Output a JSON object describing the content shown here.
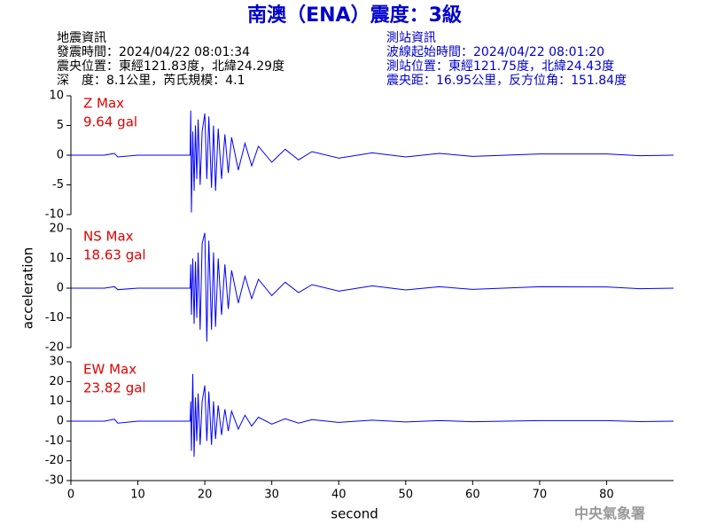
{
  "header": {
    "title": "南澳（ENA）震度：3級",
    "left": [
      "地震資訊",
      "發震時間：2024/04/22 08:01:34",
      "震央位置：東經121.83度，北緯24.29度",
      "深　度：8.1公里，芮氏規模：4.1"
    ],
    "right": [
      "測站資訊",
      "波線起始時間：2024/04/22 08:01:20",
      "測站位置：東經121.75度，北緯24.43度",
      "震央距：16.95公里，反方位角：151.84度"
    ],
    "agency": "中央氣象署"
  },
  "chart_data": [
    {
      "type": "line",
      "label": "Z Max",
      "max": "9.64 gal",
      "color": "#0000ff",
      "xlim": [
        0,
        90
      ],
      "ylim": [
        -10,
        10
      ],
      "yticks": [
        -10,
        -5,
        0,
        5,
        10
      ],
      "x": [
        0,
        5,
        6.5,
        7,
        10,
        15,
        17.8,
        17.9,
        18.0,
        18.2,
        18.4,
        18.6,
        18.8,
        19,
        19.3,
        19.6,
        20,
        20.3,
        20.6,
        21,
        21.3,
        21.6,
        22,
        22.5,
        23,
        23.5,
        24,
        25,
        26,
        27,
        28,
        30,
        32,
        34,
        36,
        40,
        45,
        50,
        55,
        60,
        70,
        80,
        85,
        90
      ],
      "values": [
        0,
        0,
        0.3,
        -0.3,
        0,
        0,
        0,
        7.5,
        -9.64,
        4,
        -6,
        5,
        -4,
        6,
        -5,
        4,
        7,
        -4,
        6.5,
        -5.5,
        5,
        -6,
        4.5,
        -4,
        3.5,
        -3,
        3,
        -2.5,
        2,
        -1.8,
        1.5,
        -1.2,
        1,
        -0.8,
        0.6,
        -0.5,
        0.4,
        -0.3,
        0.3,
        -0.2,
        0.2,
        0.2,
        -0.1,
        0
      ]
    },
    {
      "type": "line",
      "label": "NS Max",
      "max": "18.63 gal",
      "ylabel": "acceleration",
      "color": "#0000ff",
      "xlim": [
        0,
        90
      ],
      "ylim": [
        -20,
        20
      ],
      "yticks": [
        -20,
        -10,
        0,
        10,
        20
      ],
      "x": [
        0,
        5,
        6.5,
        7,
        10,
        15,
        17.8,
        17.9,
        18.0,
        18.2,
        18.4,
        18.6,
        18.8,
        19,
        19.3,
        19.6,
        20,
        20.3,
        20.6,
        21,
        21.3,
        21.6,
        22,
        22.5,
        23,
        23.5,
        24,
        25,
        26,
        27,
        28,
        30,
        32,
        34,
        36,
        40,
        45,
        50,
        55,
        60,
        70,
        80,
        85,
        90
      ],
      "values": [
        0,
        0,
        0.5,
        -0.5,
        0,
        0,
        0,
        8,
        -9,
        10,
        -12,
        9,
        -10,
        12,
        -14,
        15,
        18.63,
        -18,
        16,
        -14,
        12,
        -13,
        10,
        -9,
        8,
        -7,
        6,
        -5,
        4,
        -3.5,
        3,
        -2.5,
        2,
        -1.5,
        1.2,
        -1,
        0.8,
        -0.6,
        0.5,
        -0.4,
        0.5,
        0.4,
        -0.2,
        0
      ]
    },
    {
      "type": "line",
      "label": "EW Max",
      "max": "23.82 gal",
      "xlabel": "second",
      "color": "#0000ff",
      "xlim": [
        0,
        90
      ],
      "ylim": [
        -30,
        30
      ],
      "yticks": [
        -30,
        -20,
        -10,
        0,
        10,
        20,
        30
      ],
      "xticks": [
        0,
        10,
        20,
        30,
        40,
        50,
        60,
        70,
        80
      ],
      "x": [
        0,
        5,
        6.5,
        7,
        10,
        15,
        17.8,
        17.9,
        18.0,
        18.2,
        18.4,
        18.6,
        18.8,
        19,
        19.3,
        19.6,
        20,
        20.3,
        20.6,
        21,
        21.3,
        21.6,
        22,
        22.5,
        23,
        23.5,
        24,
        25,
        26,
        27,
        28,
        30,
        32,
        34,
        36,
        40,
        45,
        50,
        55,
        60,
        70,
        80,
        85,
        90
      ],
      "values": [
        0,
        0,
        1,
        -1,
        0,
        0,
        0,
        10,
        -15,
        23.82,
        -18,
        12,
        -10,
        14,
        -12,
        10,
        18,
        -10,
        15,
        -12,
        10,
        -9,
        8,
        -7,
        6,
        -5,
        5,
        -4,
        3,
        -2.5,
        2,
        -1.5,
        1.2,
        -1,
        0.8,
        -0.6,
        0.5,
        -0.4,
        0.3,
        -0.3,
        0.3,
        0.3,
        -0.2,
        0
      ]
    }
  ]
}
